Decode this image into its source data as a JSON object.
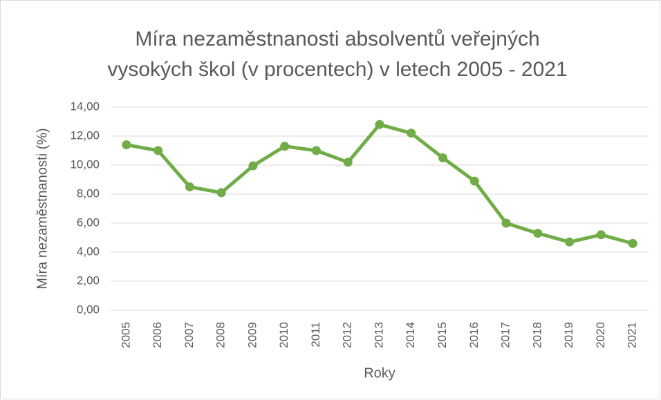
{
  "chart_data": {
    "type": "line",
    "title": [
      "Míra nezaměstnanosti absolventů veřejných",
      "vysokých škol (v procentech) v letech 2005 - 2021"
    ],
    "x_label": "Roky",
    "y_label": "Míra nezaměstnanosti (%)",
    "categories": [
      "2005",
      "2006",
      "2007",
      "2008",
      "2009",
      "2010",
      "2011",
      "2012",
      "2013",
      "2014",
      "2015",
      "2016",
      "2017",
      "2018",
      "2019",
      "2020",
      "2021"
    ],
    "series": [
      {
        "name": "Míra nezaměstnanosti",
        "color": "#70ad47",
        "values": [
          11.4,
          11.0,
          8.5,
          8.1,
          9.95,
          11.3,
          11.0,
          10.2,
          12.8,
          12.2,
          10.5,
          8.9,
          6.0,
          5.3,
          4.7,
          5.2,
          4.6
        ]
      }
    ],
    "ylim": [
      0,
      14
    ],
    "yticks": [
      {
        "value": 0,
        "label": "0,00"
      },
      {
        "value": 2,
        "label": "2,00"
      },
      {
        "value": 4,
        "label": "4,00"
      },
      {
        "value": 6,
        "label": "6,00"
      },
      {
        "value": 8,
        "label": "8,00"
      },
      {
        "value": 10,
        "label": "10,00"
      },
      {
        "value": 12,
        "label": "12,00"
      },
      {
        "value": 14,
        "label": "14,00"
      }
    ],
    "grid": true,
    "legend": false
  }
}
